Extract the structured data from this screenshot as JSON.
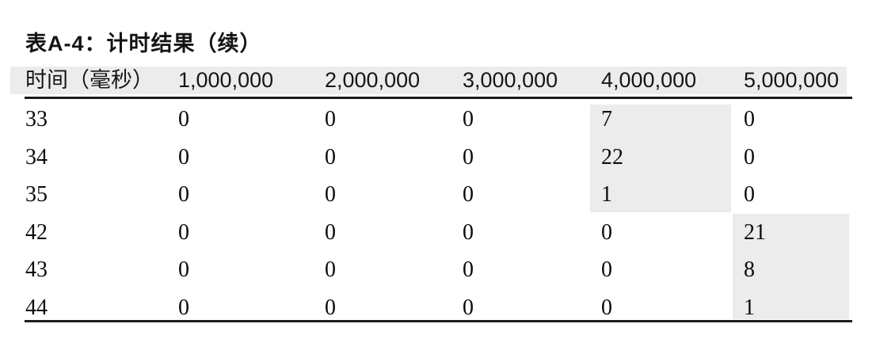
{
  "title": "表A-4：计时结果（续）",
  "table": {
    "columns": [
      "时间（毫秒）",
      "1,000,000",
      "2,000,000",
      "3,000,000",
      "4,000,000",
      "5,000,000"
    ],
    "rows": [
      {
        "label": "33",
        "cells": [
          "0",
          "0",
          "0",
          "7",
          "0"
        ],
        "highlight_column": "4,000,000"
      },
      {
        "label": "34",
        "cells": [
          "0",
          "0",
          "0",
          "22",
          "0"
        ],
        "highlight_column": "4,000,000"
      },
      {
        "label": "35",
        "cells": [
          "0",
          "0",
          "0",
          "1",
          "0"
        ],
        "highlight_column": "4,000,000"
      },
      {
        "label": "42",
        "cells": [
          "0",
          "0",
          "0",
          "0",
          "21"
        ],
        "highlight_column": "5,000,000"
      },
      {
        "label": "43",
        "cells": [
          "0",
          "0",
          "0",
          "0",
          "8"
        ],
        "highlight_column": "5,000,000"
      },
      {
        "label": "44",
        "cells": [
          "0",
          "0",
          "0",
          "0",
          "1"
        ],
        "highlight_column": "5,000,000"
      }
    ]
  },
  "colors": {
    "header_band": "#ececec",
    "cell_highlight": "#ececec",
    "rule": "#1c1c1c",
    "text": "#0c0c0c",
    "background": "#ffffff"
  }
}
